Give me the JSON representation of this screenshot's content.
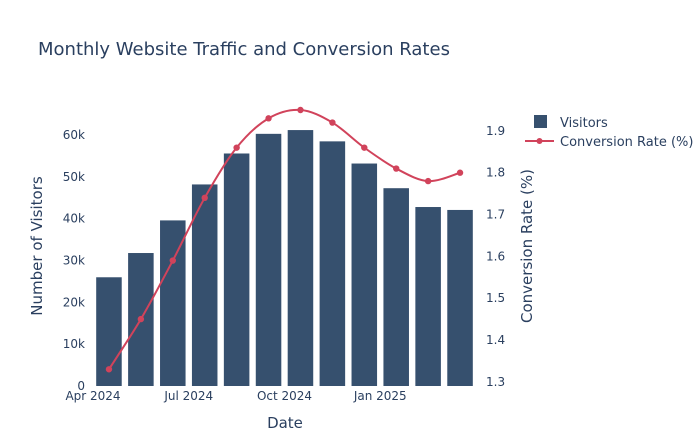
{
  "chart_data": {
    "type": "bar+line",
    "title": "Monthly Website Traffic and Conversion Rates",
    "xlabel": "Date",
    "ylabel": "Number of Visitors",
    "y2label": "Conversion Rate (%)",
    "x": [
      "2024-04",
      "2024-05",
      "2024-06",
      "2024-07",
      "2024-08",
      "2024-09",
      "2024-10",
      "2024-11",
      "2024-12",
      "2025-01",
      "2025-02",
      "2025-03"
    ],
    "x_tick_labels": [
      {
        "label": "Apr 2024",
        "at": "2024-04"
      },
      {
        "label": "Jul 2024",
        "at": "2024-07"
      },
      {
        "label": "Oct 2024",
        "at": "2024-10"
      },
      {
        "label": "Jan 2025",
        "at": "2025-01"
      }
    ],
    "ylim": [
      0,
      66000
    ],
    "y_ticks": [
      0,
      10000,
      20000,
      30000,
      40000,
      50000,
      60000
    ],
    "y_tick_labels": [
      "0",
      "10k",
      "20k",
      "30k",
      "40k",
      "50k",
      "60k"
    ],
    "y2lim": [
      1.29,
      1.95
    ],
    "y2_ticks": [
      1.3,
      1.4,
      1.5,
      1.6,
      1.7,
      1.8,
      1.9
    ],
    "y2_tick_labels": [
      "1.3",
      "1.4",
      "1.5",
      "1.6",
      "1.7",
      "1.8",
      "1.9"
    ],
    "series": [
      {
        "name": "Visitors",
        "type": "bar",
        "axis": "y",
        "color": "#36506e",
        "values": [
          26000,
          31800,
          39600,
          48200,
          55600,
          60300,
          61200,
          58500,
          53200,
          47300,
          42800,
          42100
        ]
      },
      {
        "name": "Conversion Rate (%)",
        "type": "line",
        "axis": "y2",
        "color": "#d1435b",
        "values": [
          1.33,
          1.45,
          1.59,
          1.74,
          1.86,
          1.93,
          1.95,
          1.92,
          1.86,
          1.81,
          1.78,
          1.8
        ]
      }
    ],
    "legend": {
      "position": "top-right",
      "entries": [
        "Visitors",
        "Conversion Rate (%)"
      ]
    },
    "colors": {
      "text": "#2a3f5f",
      "grid": "#ffffff",
      "background": "#ffffff"
    }
  }
}
